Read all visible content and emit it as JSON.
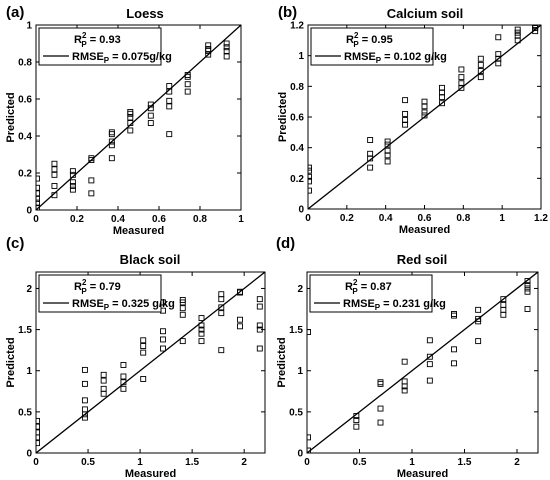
{
  "chart_data": [
    {
      "type": "scatter",
      "panel": "(a)",
      "title": "Loess",
      "xlabel": "Measured",
      "ylabel": "Predicted",
      "xlim": [
        0,
        1
      ],
      "ylim": [
        0,
        1
      ],
      "xticks": [
        "0",
        "0.2",
        "0.4",
        "0.6",
        "0.8",
        "1"
      ],
      "yticks": [
        "0",
        "0.2",
        "0.4",
        "0.6",
        "0.8",
        "1"
      ],
      "legend": {
        "position": "top-left",
        "r2_label": "R",
        "r2_sup": "2",
        "r2_sub": "P",
        "r2_value": " = 0.93",
        "rmse_label": "RMSE",
        "rmse_sub": "P",
        "rmse_value": " = 0.075g/kg"
      },
      "fit_line": [
        [
          0,
          0
        ],
        [
          1,
          1
        ]
      ],
      "points": [
        [
          0.005,
          0.01
        ],
        [
          0.005,
          0.04
        ],
        [
          0.005,
          0.06
        ],
        [
          0.005,
          0.09
        ],
        [
          0.005,
          0.12
        ],
        [
          0.005,
          0.17
        ],
        [
          0.09,
          0.08
        ],
        [
          0.09,
          0.13
        ],
        [
          0.09,
          0.19
        ],
        [
          0.09,
          0.22
        ],
        [
          0.09,
          0.25
        ],
        [
          0.18,
          0.11
        ],
        [
          0.18,
          0.13
        ],
        [
          0.18,
          0.15
        ],
        [
          0.18,
          0.19
        ],
        [
          0.18,
          0.21
        ],
        [
          0.27,
          0.09
        ],
        [
          0.27,
          0.16
        ],
        [
          0.27,
          0.27
        ],
        [
          0.27,
          0.28
        ],
        [
          0.37,
          0.28
        ],
        [
          0.37,
          0.35
        ],
        [
          0.37,
          0.37
        ],
        [
          0.37,
          0.41
        ],
        [
          0.37,
          0.42
        ],
        [
          0.46,
          0.43
        ],
        [
          0.46,
          0.47
        ],
        [
          0.46,
          0.5
        ],
        [
          0.46,
          0.52
        ],
        [
          0.46,
          0.53
        ],
        [
          0.56,
          0.47
        ],
        [
          0.56,
          0.51
        ],
        [
          0.56,
          0.55
        ],
        [
          0.56,
          0.57
        ],
        [
          0.65,
          0.41
        ],
        [
          0.65,
          0.56
        ],
        [
          0.65,
          0.59
        ],
        [
          0.65,
          0.64
        ],
        [
          0.65,
          0.67
        ],
        [
          0.74,
          0.64
        ],
        [
          0.74,
          0.68
        ],
        [
          0.74,
          0.72
        ],
        [
          0.74,
          0.73
        ],
        [
          0.84,
          0.84
        ],
        [
          0.84,
          0.86
        ],
        [
          0.84,
          0.87
        ],
        [
          0.84,
          0.89
        ],
        [
          0.93,
          0.83
        ],
        [
          0.93,
          0.86
        ],
        [
          0.93,
          0.88
        ],
        [
          0.93,
          0.9
        ]
      ]
    },
    {
      "type": "scatter",
      "panel": "(b)",
      "title": "Calcium soil",
      "xlabel": "Measured",
      "ylabel": "Predicted",
      "xlim": [
        0,
        1.2
      ],
      "ylim": [
        0,
        1.2
      ],
      "xticks": [
        "0",
        "0.2",
        "0.4",
        "0.6",
        "0.8",
        "1",
        "1.2"
      ],
      "yticks": [
        "0",
        "0.2",
        "0.4",
        "0.6",
        "0.8",
        "1",
        "1.2"
      ],
      "legend": {
        "position": "top-left",
        "r2_label": "R",
        "r2_sup": "2",
        "r2_sub": "P",
        "r2_value": " = 0.95",
        "rmse_label": "RMSE",
        "rmse_sub": "P",
        "rmse_value": " = 0.102 g/kg"
      },
      "fit_line": [
        [
          0,
          0
        ],
        [
          1.2,
          1.2
        ]
      ],
      "points": [
        [
          0.005,
          0.12
        ],
        [
          0.005,
          0.18
        ],
        [
          0.005,
          0.21
        ],
        [
          0.005,
          0.25
        ],
        [
          0.005,
          0.27
        ],
        [
          0.32,
          0.27
        ],
        [
          0.32,
          0.33
        ],
        [
          0.32,
          0.36
        ],
        [
          0.32,
          0.45
        ],
        [
          0.41,
          0.31
        ],
        [
          0.41,
          0.35
        ],
        [
          0.41,
          0.38
        ],
        [
          0.41,
          0.42
        ],
        [
          0.41,
          0.44
        ],
        [
          0.5,
          0.55
        ],
        [
          0.5,
          0.58
        ],
        [
          0.5,
          0.62
        ],
        [
          0.5,
          0.71
        ],
        [
          0.6,
          0.61
        ],
        [
          0.6,
          0.63
        ],
        [
          0.6,
          0.67
        ],
        [
          0.6,
          0.7
        ],
        [
          0.69,
          0.69
        ],
        [
          0.69,
          0.73
        ],
        [
          0.69,
          0.76
        ],
        [
          0.69,
          0.79
        ],
        [
          0.79,
          0.79
        ],
        [
          0.79,
          0.82
        ],
        [
          0.79,
          0.86
        ],
        [
          0.79,
          0.91
        ],
        [
          0.89,
          0.86
        ],
        [
          0.89,
          0.9
        ],
        [
          0.89,
          0.94
        ],
        [
          0.89,
          0.98
        ],
        [
          0.98,
          0.95
        ],
        [
          0.98,
          0.98
        ],
        [
          0.98,
          1.01
        ],
        [
          0.98,
          1.12
        ],
        [
          1.08,
          1.1
        ],
        [
          1.08,
          1.13
        ],
        [
          1.08,
          1.15
        ],
        [
          1.08,
          1.17
        ],
        [
          1.17,
          1.16
        ],
        [
          1.17,
          1.18
        ],
        [
          1.17,
          1.19
        ],
        [
          1.17,
          1.2
        ]
      ]
    },
    {
      "type": "scatter",
      "panel": "(c)",
      "title": "Black soil",
      "xlabel": "Measured",
      "ylabel": "Predicted",
      "xlim": [
        0,
        2.2
      ],
      "ylim": [
        0,
        2.2
      ],
      "xticks": [
        "0",
        "0.5",
        "1",
        "1.5",
        "2"
      ],
      "xtick_values": [
        0,
        0.5,
        1,
        1.5,
        2
      ],
      "yticks": [
        "0",
        "0.5",
        "1",
        "1.5",
        "2"
      ],
      "ytick_values": [
        0,
        0.5,
        1,
        1.5,
        2
      ],
      "legend": {
        "position": "top-left",
        "r2_label": "R",
        "r2_sup": "2",
        "r2_sub": "P",
        "r2_value": " = 0.79",
        "rmse_label": "RMSE",
        "rmse_sub": "P",
        "rmse_value": " = 0.325 g/kg"
      },
      "fit_line": [
        [
          0,
          0
        ],
        [
          2.2,
          2.2
        ]
      ],
      "points": [
        [
          0.01,
          0.12
        ],
        [
          0.01,
          0.19
        ],
        [
          0.01,
          0.25
        ],
        [
          0.01,
          0.32
        ],
        [
          0.01,
          0.39
        ],
        [
          0.47,
          0.43
        ],
        [
          0.47,
          0.47
        ],
        [
          0.47,
          0.53
        ],
        [
          0.47,
          0.64
        ],
        [
          0.47,
          0.84
        ],
        [
          0.47,
          1.01
        ],
        [
          0.65,
          0.72
        ],
        [
          0.65,
          0.78
        ],
        [
          0.65,
          0.88
        ],
        [
          0.65,
          0.95
        ],
        [
          0.84,
          0.78
        ],
        [
          0.84,
          0.86
        ],
        [
          0.84,
          0.93
        ],
        [
          0.84,
          1.07
        ],
        [
          1.03,
          0.9
        ],
        [
          1.03,
          1.22
        ],
        [
          1.03,
          1.3
        ],
        [
          1.03,
          1.37
        ],
        [
          1.22,
          1.27
        ],
        [
          1.22,
          1.38
        ],
        [
          1.22,
          1.48
        ],
        [
          1.22,
          1.73
        ],
        [
          1.22,
          1.83
        ],
        [
          1.41,
          1.36
        ],
        [
          1.41,
          1.68
        ],
        [
          1.41,
          1.76
        ],
        [
          1.41,
          1.83
        ],
        [
          1.41,
          1.86
        ],
        [
          1.59,
          1.36
        ],
        [
          1.59,
          1.45
        ],
        [
          1.59,
          1.5
        ],
        [
          1.59,
          1.55
        ],
        [
          1.59,
          1.64
        ],
        [
          1.78,
          1.25
        ],
        [
          1.78,
          1.7
        ],
        [
          1.78,
          1.77
        ],
        [
          1.78,
          1.87
        ],
        [
          1.78,
          1.93
        ],
        [
          1.96,
          1.54
        ],
        [
          1.96,
          1.62
        ],
        [
          1.96,
          1.95
        ],
        [
          1.96,
          1.96
        ],
        [
          2.15,
          1.27
        ],
        [
          2.15,
          1.5
        ],
        [
          2.15,
          1.55
        ],
        [
          2.15,
          1.78
        ],
        [
          2.15,
          1.87
        ]
      ]
    },
    {
      "type": "scatter",
      "panel": "(d)",
      "title": "Red soil",
      "xlabel": "Measured",
      "ylabel": "Predicted",
      "xlim": [
        0,
        2.2
      ],
      "ylim": [
        0,
        2.2
      ],
      "xticks": [
        "0",
        "0.5",
        "1",
        "1.5",
        "2"
      ],
      "xtick_values": [
        0,
        0.5,
        1,
        1.5,
        2
      ],
      "yticks": [
        "0",
        "0.5",
        "1",
        "1.5",
        "2"
      ],
      "ytick_values": [
        0,
        0.5,
        1,
        1.5,
        2
      ],
      "legend": {
        "position": "top-left",
        "r2_label": "R",
        "r2_sup": "2",
        "r2_sub": "P",
        "r2_value": " = 0.87",
        "rmse_label": "RMSE",
        "rmse_sub": "P",
        "rmse_value": " = 0.231 g/kg"
      },
      "fit_line": [
        [
          0,
          0
        ],
        [
          2.2,
          2.2
        ]
      ],
      "points": [
        [
          0.01,
          0.03
        ],
        [
          0.01,
          0.19
        ],
        [
          0.01,
          1.47
        ],
        [
          0.47,
          0.32
        ],
        [
          0.47,
          0.4
        ],
        [
          0.47,
          0.45
        ],
        [
          0.7,
          0.37
        ],
        [
          0.7,
          0.54
        ],
        [
          0.7,
          0.84
        ],
        [
          0.7,
          0.86
        ],
        [
          0.93,
          0.76
        ],
        [
          0.93,
          0.81
        ],
        [
          0.93,
          0.87
        ],
        [
          0.93,
          1.11
        ],
        [
          1.17,
          0.88
        ],
        [
          1.17,
          1.08
        ],
        [
          1.17,
          1.17
        ],
        [
          1.17,
          1.37
        ],
        [
          1.4,
          1.09
        ],
        [
          1.4,
          1.26
        ],
        [
          1.4,
          1.67
        ],
        [
          1.4,
          1.69
        ],
        [
          1.63,
          1.36
        ],
        [
          1.63,
          1.6
        ],
        [
          1.63,
          1.63
        ],
        [
          1.63,
          1.74
        ],
        [
          1.87,
          1.68
        ],
        [
          1.87,
          1.74
        ],
        [
          1.87,
          1.8
        ],
        [
          1.87,
          1.87
        ],
        [
          2.1,
          1.75
        ],
        [
          2.1,
          1.96
        ],
        [
          2.1,
          2.0
        ],
        [
          2.1,
          2.04
        ],
        [
          2.1,
          2.09
        ]
      ]
    }
  ]
}
